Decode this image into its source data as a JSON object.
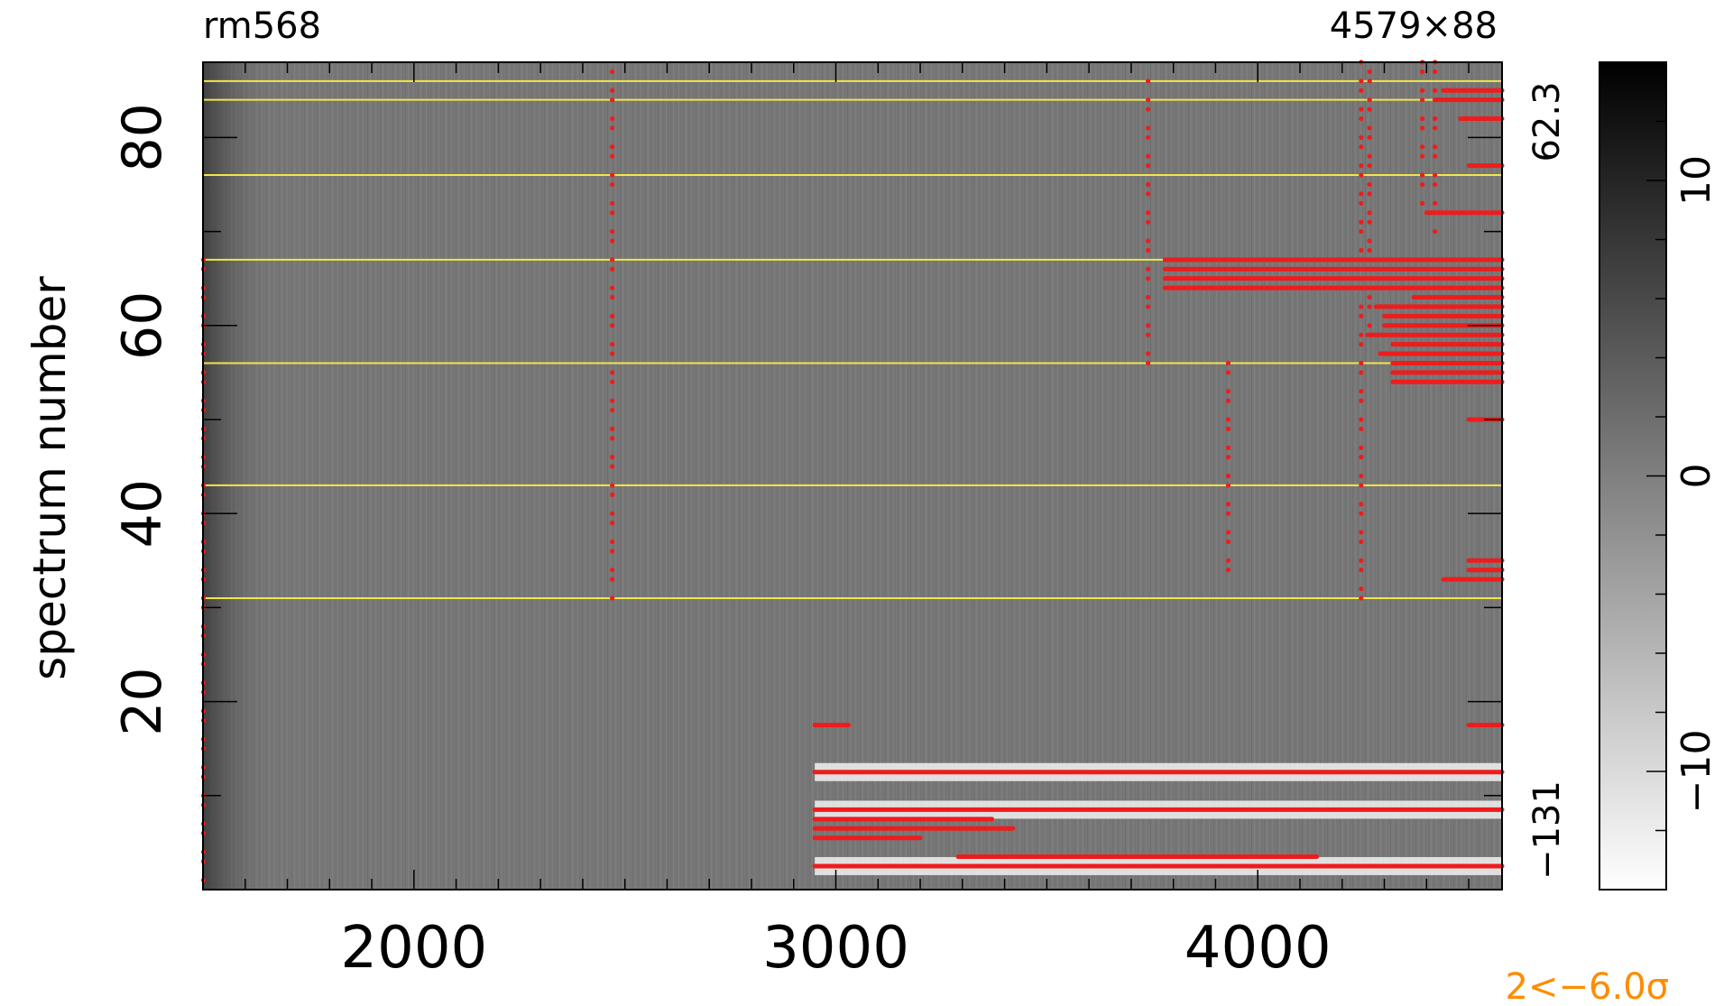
{
  "chart_data": {
    "type": "heatmap",
    "title_left": "rm568",
    "title_right": "4579×88",
    "ylabel": "spectrum number",
    "xlim": [
      1500,
      4579
    ],
    "ylim": [
      0,
      88
    ],
    "x_ticks": [
      2000,
      3000,
      4000
    ],
    "y_ticks": [
      20,
      40,
      60,
      80
    ],
    "right_top_label": "62.3",
    "right_bottom_label": "−131",
    "colorbar": {
      "min": -14,
      "max": 14,
      "ticks": [
        -10,
        0,
        10
      ],
      "colors": [
        "#ffffff",
        "#000000"
      ]
    },
    "footer_note": "2<−6.0σ",
    "footer_color": "#ff8c00",
    "mask_color": "#ee1c1c",
    "guide_line_color": "#f0e64a",
    "guide_lines_y": [
      31,
      43,
      56,
      67,
      76,
      84,
      86
    ],
    "flagged_segments": [
      {
        "y": 2.5,
        "x": [
          2950,
          4579
        ]
      },
      {
        "y": 3.5,
        "x": [
          3290,
          4140
        ]
      },
      {
        "y": 5.5,
        "x": [
          2950,
          3200
        ]
      },
      {
        "y": 6.5,
        "x": [
          2950,
          3420
        ]
      },
      {
        "y": 7.5,
        "x": [
          2950,
          3370
        ]
      },
      {
        "y": 8.5,
        "x": [
          2950,
          4579
        ]
      },
      {
        "y": 12.5,
        "x": [
          2950,
          4579
        ]
      },
      {
        "y": 17.5,
        "x": [
          2950,
          3030
        ]
      },
      {
        "y": 17.5,
        "x": [
          4500,
          4579
        ]
      },
      {
        "y": 33,
        "x": [
          4440,
          4579
        ]
      },
      {
        "y": 34,
        "x": [
          4500,
          4579
        ]
      },
      {
        "y": 35,
        "x": [
          4500,
          4579
        ]
      },
      {
        "y": 50,
        "x": [
          4500,
          4579
        ]
      },
      {
        "y": 54,
        "x": [
          4320,
          4579
        ]
      },
      {
        "y": 55,
        "x": [
          4320,
          4579
        ]
      },
      {
        "y": 56,
        "x": [
          4320,
          4579
        ]
      },
      {
        "y": 57,
        "x": [
          4290,
          4579
        ]
      },
      {
        "y": 58,
        "x": [
          4320,
          4579
        ]
      },
      {
        "y": 59,
        "x": [
          4260,
          4579
        ]
      },
      {
        "y": 60,
        "x": [
          4300,
          4579
        ]
      },
      {
        "y": 61,
        "x": [
          4300,
          4579
        ]
      },
      {
        "y": 62,
        "x": [
          4280,
          4579
        ]
      },
      {
        "y": 63,
        "x": [
          4370,
          4579
        ]
      },
      {
        "y": 64,
        "x": [
          3780,
          4579
        ]
      },
      {
        "y": 65,
        "x": [
          3780,
          4579
        ]
      },
      {
        "y": 66,
        "x": [
          3780,
          4579
        ]
      },
      {
        "y": 67,
        "x": [
          3780,
          4579
        ]
      },
      {
        "y": 72,
        "x": [
          4400,
          4579
        ]
      },
      {
        "y": 77,
        "x": [
          4500,
          4579
        ]
      },
      {
        "y": 82,
        "x": [
          4480,
          4579
        ]
      },
      {
        "y": 84,
        "x": [
          4420,
          4579
        ]
      },
      {
        "y": 85,
        "x": [
          4440,
          4579
        ]
      }
    ],
    "flagged_points": [
      {
        "x": 2470,
        "y_range": [
          31,
          87
        ]
      },
      {
        "x": 1501,
        "y_range": [
          1,
          67
        ]
      },
      {
        "x": 4245,
        "y_range": [
          31,
          88
        ]
      },
      {
        "x": 4265,
        "y_range": [
          59,
          88
        ]
      },
      {
        "x": 4390,
        "y_range": [
          73,
          88
        ]
      },
      {
        "x": 4420,
        "y_range": [
          70,
          88
        ]
      },
      {
        "x": 3930,
        "y_range": [
          34,
          56
        ]
      },
      {
        "x": 3740,
        "y_range": [
          56,
          86
        ]
      }
    ]
  }
}
